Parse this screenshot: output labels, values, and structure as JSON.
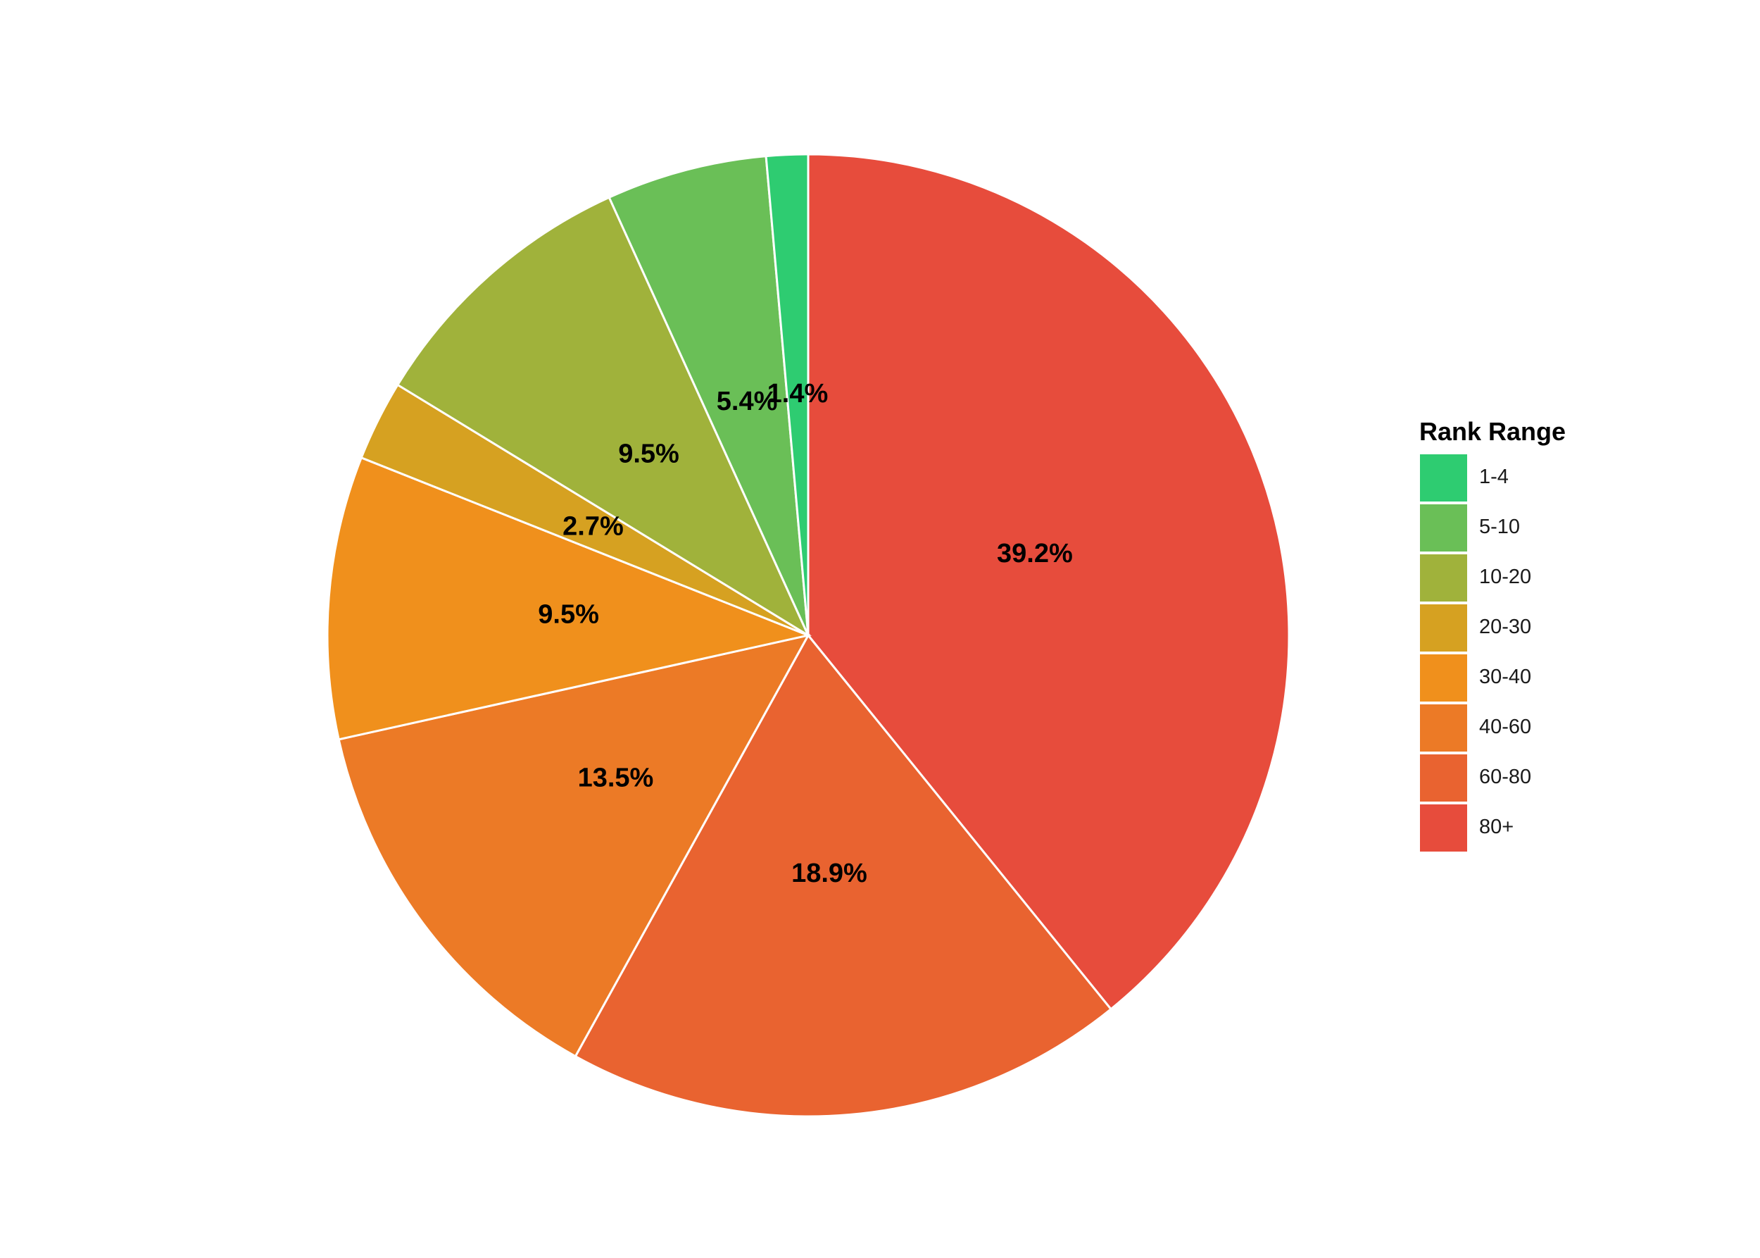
{
  "chart_data": {
    "type": "pie",
    "title": "",
    "start": "12 o'clock",
    "direction": "clockwise from 80+, ending with 1-4",
    "categories": [
      "1-4",
      "5-10",
      "10-20",
      "20-30",
      "30-40",
      "40-60",
      "60-80",
      "80+"
    ],
    "values": [
      1.4,
      5.4,
      9.5,
      2.7,
      9.5,
      13.5,
      18.9,
      39.2
    ],
    "labels": [
      "1.4%",
      "5.4%",
      "9.5%",
      "2.7%",
      "9.5%",
      "13.5%",
      "18.9%",
      "39.2%"
    ],
    "colors": [
      "#2ecc71",
      "#6abf57",
      "#a0b23b",
      "#d6a121",
      "#f0901c",
      "#ec7a26",
      "#e96330",
      "#e74c3c"
    ],
    "slice_border_color": "#ffffff",
    "legend": {
      "title": "Rank Range",
      "placement": "right",
      "entries": [
        "1-4",
        "5-10",
        "10-20",
        "20-30",
        "30-40",
        "40-60",
        "60-80",
        "80+"
      ]
    }
  }
}
